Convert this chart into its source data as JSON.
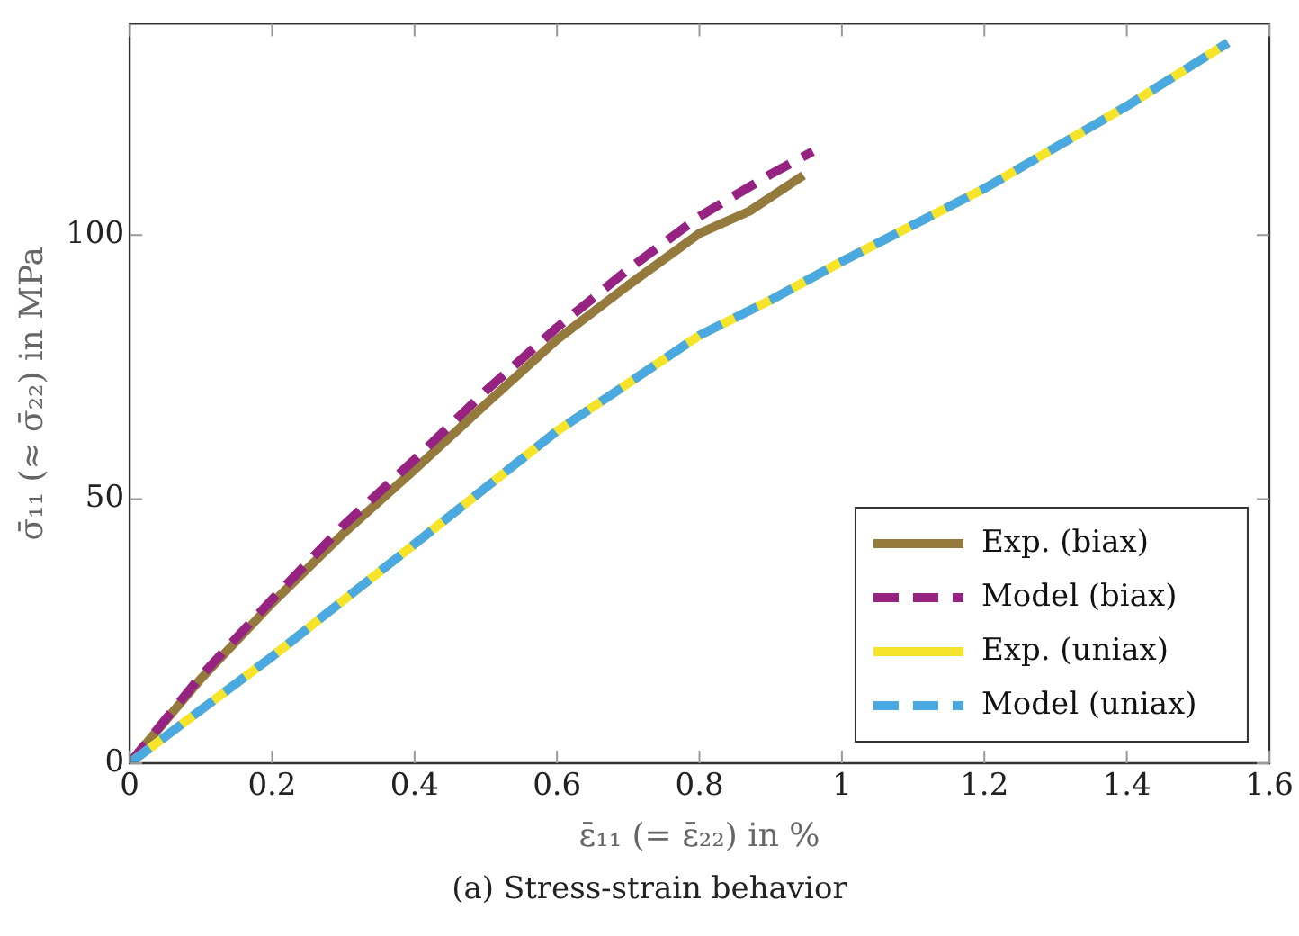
{
  "chart_data": {
    "type": "line",
    "xlabel": "ε̄₁₁ (= ε̄₂₂) in %",
    "ylabel": "σ̄₁₁ (≈ σ̄₂₂) in MPa",
    "annotations": [
      "(a) Stress-strain behavior"
    ],
    "xlim": [
      0,
      1.6
    ],
    "xticks": [
      0,
      0.2,
      0.4,
      0.6,
      0.8,
      1,
      1.2,
      1.4,
      1.6
    ],
    "ylim": [
      0,
      140
    ],
    "yticks": [
      0,
      50,
      100
    ],
    "grid": false,
    "legend": "bottom right",
    "marker": "none",
    "series": [
      {
        "name": "Exp. (biax)",
        "color": "#947a3c",
        "line_style": "solid",
        "x": [
          0,
          0.1,
          0.2,
          0.3,
          0.4,
          0.5,
          0.6,
          0.7,
          0.8,
          0.87,
          0.946
        ],
        "values": [
          0,
          16,
          30.3,
          43.5,
          55.6,
          68,
          80.2,
          90.5,
          100.3,
          104.5,
          111.3
        ]
      },
      {
        "name": "Model (biax)",
        "color": "#962382",
        "line_style": "dashed",
        "x": [
          0,
          0.1,
          0.2,
          0.3,
          0.4,
          0.5,
          0.6,
          0.7,
          0.8,
          0.9,
          0.959
        ],
        "values": [
          0,
          16.5,
          31,
          45,
          57.5,
          70.5,
          82.5,
          93.5,
          103.5,
          111.5,
          115.8
        ]
      },
      {
        "name": "Exp. (uniax)",
        "color": "#f5e42a",
        "line_style": "solid",
        "x": [
          0,
          0.2,
          0.4,
          0.6,
          0.8,
          0.9,
          1.0,
          1.2,
          1.4,
          1.542
        ],
        "values": [
          0,
          20.2,
          41.5,
          62.9,
          81,
          87.7,
          95,
          108.8,
          124.4,
          136.4
        ]
      },
      {
        "name": "Model (uniax)",
        "color": "#49a9e0",
        "line_style": "dashed",
        "x": [
          0,
          0.2,
          0.4,
          0.6,
          0.8,
          0.9,
          1.0,
          1.2,
          1.4,
          1.542
        ],
        "values": [
          0,
          20.2,
          41.5,
          62.9,
          81,
          87.7,
          95,
          108.8,
          124.4,
          136.4
        ]
      }
    ]
  }
}
